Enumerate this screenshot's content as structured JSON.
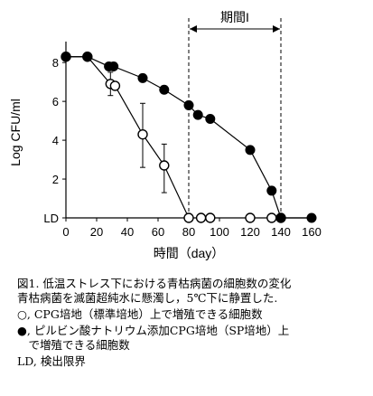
{
  "chart_data": {
    "type": "scatter",
    "xlabel": "時間（day）",
    "ylabel": "Log CFU/ml",
    "xlim": [
      0,
      160
    ],
    "ylim": [
      0,
      8.8
    ],
    "x_ticks": [
      "0",
      "20",
      "40",
      "60",
      "80",
      "100",
      "120",
      "140",
      "160"
    ],
    "y_ticks": [
      "LD",
      "2",
      "4",
      "6",
      "8"
    ],
    "period": {
      "label": "期間I",
      "x_start": 80,
      "x_end": 140
    },
    "series": [
      {
        "marker": "open-circle",
        "points": [
          {
            "x": 0,
            "y": 8.3
          },
          {
            "x": 14,
            "y": 8.3
          },
          {
            "x": 29,
            "y": 6.9,
            "err_low": 6.3,
            "err_high": 7.5
          },
          {
            "x": 32,
            "y": 6.8
          },
          {
            "x": 50,
            "y": 4.3,
            "err_low": 2.6,
            "err_high": 5.9
          },
          {
            "x": 64,
            "y": 2.7,
            "err_low": 1.3,
            "err_high": 3.8
          },
          {
            "x": 80,
            "y": 0
          },
          {
            "x": 88,
            "y": 0
          },
          {
            "x": 94,
            "y": 0
          },
          {
            "x": 120,
            "y": 0
          },
          {
            "x": 134,
            "y": 0
          },
          {
            "x": 140,
            "y": 0
          }
        ],
        "connected_through_x": 80
      },
      {
        "marker": "filled-circle",
        "points": [
          {
            "x": 0,
            "y": 8.3
          },
          {
            "x": 14,
            "y": 8.3
          },
          {
            "x": 28,
            "y": 7.8
          },
          {
            "x": 31,
            "y": 7.8
          },
          {
            "x": 50,
            "y": 7.2
          },
          {
            "x": 64,
            "y": 6.6
          },
          {
            "x": 80,
            "y": 5.8
          },
          {
            "x": 86,
            "y": 5.3
          },
          {
            "x": 94,
            "y": 5.1
          },
          {
            "x": 120,
            "y": 3.5
          },
          {
            "x": 134,
            "y": 1.4
          },
          {
            "x": 140,
            "y": 0
          },
          {
            "x": 160,
            "y": 0
          }
        ],
        "connected_through_x": 160
      }
    ]
  },
  "caption": {
    "lines": [
      "図1. 低温ストレス下における青枯病菌の細胞数の変化",
      "青枯病菌を滅菌超純水に懸濁し，5℃下に静置した.",
      "○, CPG培地（標準培地）上で増殖できる細胞数",
      "●, ピルビン酸ナトリウム添加CPG培地（SP培地）上",
      "　で増殖できる細胞数",
      "LD, 検出限界"
    ]
  }
}
